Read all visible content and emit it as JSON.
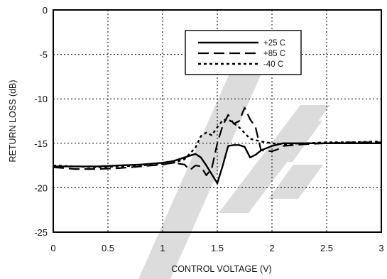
{
  "chart_data": {
    "type": "line",
    "xlabel": "CONTROL VOLTAGE  (V)",
    "ylabel": "RETURN LOSS (dB)",
    "xlim": [
      0,
      3
    ],
    "ylim": [
      -25,
      0
    ],
    "x_ticks": [
      "0",
      "0.5",
      "1",
      "1.5",
      "2",
      "2.5",
      "3"
    ],
    "y_ticks": [
      "0",
      "-5",
      "-10",
      "-15",
      "-20",
      "-25"
    ],
    "grid": true,
    "legend_position": "top-right",
    "watermark_color": "#dcdcdc",
    "series": [
      {
        "name": "+25 C",
        "style": "solid",
        "points": [
          [
            0,
            -17.6
          ],
          [
            0.2,
            -17.6
          ],
          [
            0.4,
            -17.6
          ],
          [
            0.6,
            -17.5
          ],
          [
            0.8,
            -17.4
          ],
          [
            1.0,
            -17.2
          ],
          [
            1.1,
            -17.0
          ],
          [
            1.2,
            -16.6
          ],
          [
            1.3,
            -16.2
          ],
          [
            1.35,
            -16.6
          ],
          [
            1.4,
            -17.5
          ],
          [
            1.45,
            -18.5
          ],
          [
            1.5,
            -19.5
          ],
          [
            1.55,
            -17.5
          ],
          [
            1.6,
            -15.3
          ],
          [
            1.65,
            -15.2
          ],
          [
            1.7,
            -15.2
          ],
          [
            1.75,
            -15.4
          ],
          [
            1.8,
            -16.6
          ],
          [
            1.85,
            -16.3
          ],
          [
            1.9,
            -15.8
          ],
          [
            2.0,
            -15.3
          ],
          [
            2.1,
            -15.0
          ],
          [
            2.3,
            -15.0
          ],
          [
            2.5,
            -15.0
          ],
          [
            2.7,
            -15.0
          ],
          [
            3.0,
            -15.0
          ]
        ]
      },
      {
        "name": "+85 C",
        "style": "dashed",
        "points": [
          [
            0,
            -17.7
          ],
          [
            0.2,
            -17.9
          ],
          [
            0.4,
            -17.9
          ],
          [
            0.6,
            -17.8
          ],
          [
            0.8,
            -17.6
          ],
          [
            1.0,
            -17.4
          ],
          [
            1.1,
            -17.2
          ],
          [
            1.2,
            -17.4
          ],
          [
            1.25,
            -18.0
          ],
          [
            1.3,
            -17.5
          ],
          [
            1.35,
            -17.6
          ],
          [
            1.4,
            -18.6
          ],
          [
            1.45,
            -17.8
          ],
          [
            1.5,
            -15.0
          ],
          [
            1.55,
            -13.0
          ],
          [
            1.6,
            -11.8
          ],
          [
            1.65,
            -12.8
          ],
          [
            1.7,
            -12.5
          ],
          [
            1.75,
            -11.0
          ],
          [
            1.8,
            -12.3
          ],
          [
            1.85,
            -13.2
          ],
          [
            1.9,
            -15.8
          ],
          [
            2.0,
            -15.9
          ],
          [
            2.05,
            -15.7
          ],
          [
            2.1,
            -15.3
          ],
          [
            2.3,
            -15.1
          ],
          [
            2.5,
            -15.0
          ],
          [
            2.7,
            -14.9
          ],
          [
            3.0,
            -14.9
          ]
        ]
      },
      {
        "name": "-40 C",
        "style": "dotted",
        "points": [
          [
            0,
            -17.5
          ],
          [
            0.2,
            -17.6
          ],
          [
            0.4,
            -17.7
          ],
          [
            0.6,
            -17.6
          ],
          [
            0.8,
            -17.5
          ],
          [
            1.0,
            -17.3
          ],
          [
            1.1,
            -17.2
          ],
          [
            1.2,
            -16.8
          ],
          [
            1.3,
            -15.5
          ],
          [
            1.35,
            -14.2
          ],
          [
            1.4,
            -13.8
          ],
          [
            1.45,
            -14.1
          ],
          [
            1.5,
            -13.2
          ],
          [
            1.55,
            -12.4
          ],
          [
            1.6,
            -12.3
          ],
          [
            1.7,
            -13.2
          ],
          [
            1.8,
            -14.5
          ],
          [
            1.9,
            -14.8
          ],
          [
            2.0,
            -15.0
          ],
          [
            2.1,
            -15.1
          ],
          [
            2.3,
            -15.0
          ],
          [
            2.5,
            -14.9
          ],
          [
            2.7,
            -14.9
          ],
          [
            3.0,
            -14.8
          ]
        ]
      }
    ]
  }
}
